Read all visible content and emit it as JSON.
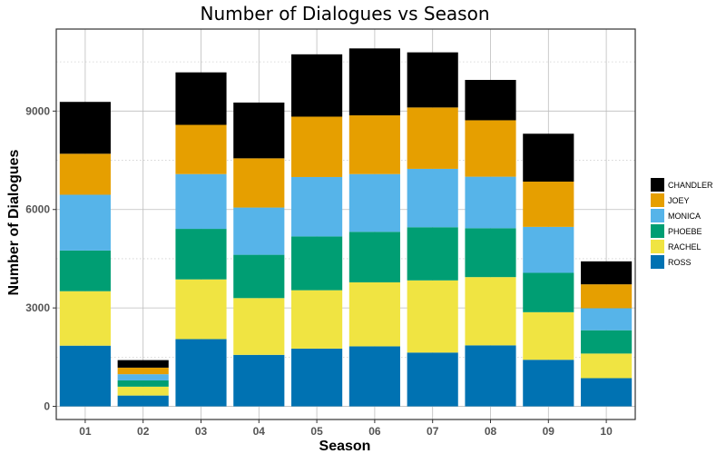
{
  "chart_data": {
    "type": "bar",
    "stacked": true,
    "title": "Number of Dialogues vs Season",
    "xlabel": "Season",
    "ylabel": "Number of Dialogues",
    "ylim": [
      -400,
      11500
    ],
    "yticks": [
      0,
      3000,
      6000,
      9000
    ],
    "yticks_labels": [
      "0",
      "3000",
      "6000",
      "9000"
    ],
    "grid": true,
    "legend_position": "right",
    "categories": [
      "01",
      "02",
      "03",
      "04",
      "05",
      "06",
      "07",
      "08",
      "09",
      "10"
    ],
    "series": [
      {
        "name": "ROSS",
        "color": "#0072b2",
        "values": [
          1850,
          330,
          2050,
          1570,
          1760,
          1830,
          1640,
          1860,
          1420,
          860
        ]
      },
      {
        "name": "RACHEL",
        "color": "#f0e442",
        "values": [
          1660,
          270,
          1820,
          1730,
          1780,
          1950,
          2200,
          2080,
          1450,
          750
        ]
      },
      {
        "name": "PHOEBE",
        "color": "#009e73",
        "values": [
          1240,
          190,
          1540,
          1320,
          1640,
          1540,
          1620,
          1490,
          1200,
          710
        ]
      },
      {
        "name": "MONICA",
        "color": "#56b4e9",
        "values": [
          1700,
          190,
          1670,
          1440,
          1810,
          1760,
          1780,
          1570,
          1400,
          670
        ]
      },
      {
        "name": "JOEY",
        "color": "#e69f00",
        "values": [
          1250,
          200,
          1500,
          1500,
          1840,
          1790,
          1870,
          1720,
          1380,
          730
        ]
      },
      {
        "name": "CHANDLER",
        "color": "#000000",
        "values": [
          1580,
          230,
          1600,
          1700,
          1900,
          2040,
          1680,
          1230,
          1460,
          700
        ]
      }
    ],
    "legend_order": [
      "CHANDLER",
      "JOEY",
      "MONICA",
      "PHOEBE",
      "RACHEL",
      "ROSS"
    ]
  }
}
